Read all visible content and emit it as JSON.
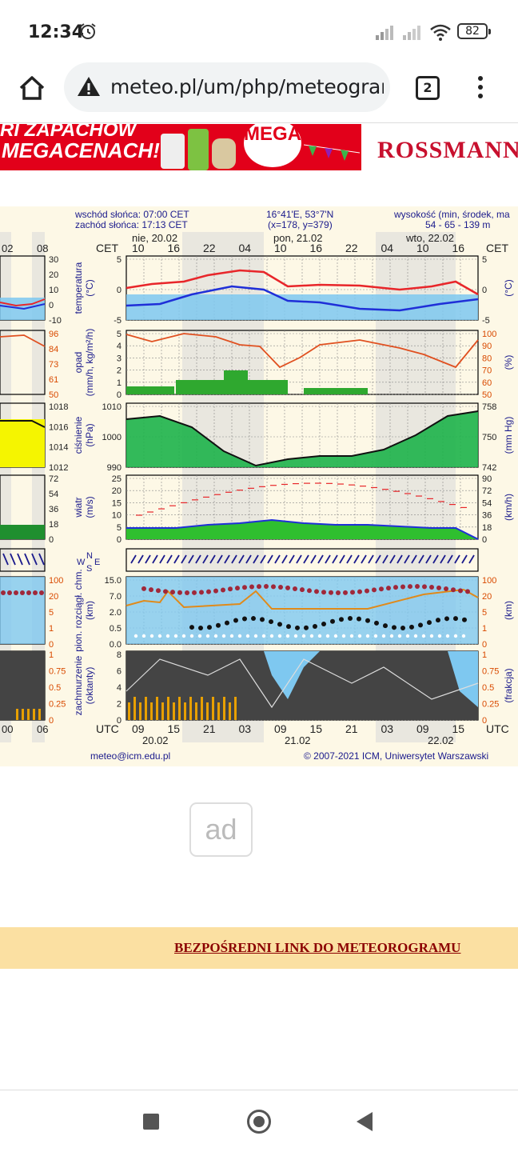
{
  "status_bar": {
    "time": "12:34",
    "battery": "82"
  },
  "browser": {
    "url": "meteo.pl/um/php/meteogram",
    "tab_count": "2"
  },
  "banner": {
    "slogan_line1": "RI ZAPACHÓW",
    "slogan_line2": "MEGACENACH!",
    "badge": "MEGA!",
    "brand": "ROSSMANN"
  },
  "meteogram": {
    "sunrise": "wschód słońca: 07:00 CET",
    "sunset": "zachód słońca: 17:13 CET",
    "coords": "16°41'E, 53°7'N",
    "grid": "(x=178, y=379)",
    "elevation_title": "wysokość (min, środek, ma",
    "elevation_values": "54 - 65 - 139 m",
    "cet": "CET",
    "utc": "UTC",
    "days_top": [
      "nie, 20.02",
      "pon, 21.02",
      "wto, 22.02"
    ],
    "hours_top": [
      "10",
      "16",
      "22",
      "04",
      "10",
      "16",
      "22",
      "04",
      "10",
      "16"
    ],
    "left_hours_top": [
      "02",
      "08"
    ],
    "hours_bottom": [
      "09",
      "15",
      "21",
      "03",
      "09",
      "15",
      "21",
      "03",
      "09",
      "15"
    ],
    "left_hours_bottom": [
      "00",
      "06"
    ],
    "dates_bottom": [
      "20.02",
      "21.02",
      "22.02"
    ],
    "panels": [
      {
        "label1": "temperatura",
        "label2": "(°C)",
        "right_unit": "(°C)",
        "left_ticks": [
          "5",
          "0",
          "-5"
        ],
        "right_ticks": [
          "5",
          "0",
          "-5"
        ],
        "mini_ticks": [
          "30",
          "20",
          "10",
          "0",
          "-10"
        ]
      },
      {
        "label1": "opad",
        "label2": "(mm/h, kg/m²/h)",
        "right_unit": "(%)",
        "left_ticks": [
          "5",
          "4",
          "3",
          "2",
          "1",
          "0"
        ],
        "right_ticks": [
          "100",
          "90",
          "80",
          "70",
          "60",
          "50"
        ],
        "mini_ticks": [
          "96",
          "84",
          "73",
          "61",
          "50"
        ]
      },
      {
        "label1": "ciśnienie",
        "label2": "(hPa)",
        "right_unit": "(mm Hg)",
        "left_ticks": [
          "1010",
          "1000",
          "990"
        ],
        "right_ticks": [
          "758",
          "750",
          "742"
        ],
        "mini_ticks": [
          "1018",
          "1016",
          "1014",
          "1012"
        ]
      },
      {
        "label1": "wiatr",
        "label2": "(m/s)",
        "right_unit": "(km/h)",
        "left_ticks": [
          "25",
          "20",
          "15",
          "10",
          "5",
          "0"
        ],
        "right_ticks": [
          "90",
          "72",
          "54",
          "36",
          "18",
          "0"
        ],
        "mini_ticks": [
          "72",
          "54",
          "36",
          "18",
          "0"
        ]
      },
      {
        "label1": "pion. rozciągł. chm.",
        "label2": "(km)",
        "right_unit": "(km)",
        "left_ticks": [
          "15.0",
          "7.0",
          "2.0",
          "0.5",
          "0.0"
        ],
        "right_ticks": [
          "100",
          "20",
          "5",
          "1",
          "0"
        ],
        "mini_ticks": [
          "100",
          "20",
          "5",
          "1",
          "0"
        ]
      },
      {
        "label1": "zachmurzenie",
        "label2": "(oktanty)",
        "right_unit": "(frakcja)",
        "left_ticks": [
          "8",
          "6",
          "4",
          "2",
          "0"
        ],
        "right_ticks": [
          "1",
          "0.75",
          "0.5",
          "0.25",
          "0"
        ],
        "mini_ticks": [
          "1",
          "0.75",
          "0.5",
          "0.25",
          "0"
        ]
      }
    ],
    "wind_dir_labels": [
      "N",
      "W",
      "S",
      "E"
    ],
    "footer_email": "meteo@icm.edu.pl",
    "footer_copyright": "© 2007-2021 ICM, Uniwersytet Warszawski",
    "colors": {
      "temp": "#e8262a",
      "dew": "#1f2fd8",
      "sky": "#7ec8f0",
      "pressure": "#1db34a",
      "humidity": "#e05020",
      "cloud": "#444444"
    }
  },
  "ad": {
    "label": "ad"
  },
  "direct_link": {
    "label": "BEZPOŚREDNI LINK DO METEOROGRAMU"
  }
}
